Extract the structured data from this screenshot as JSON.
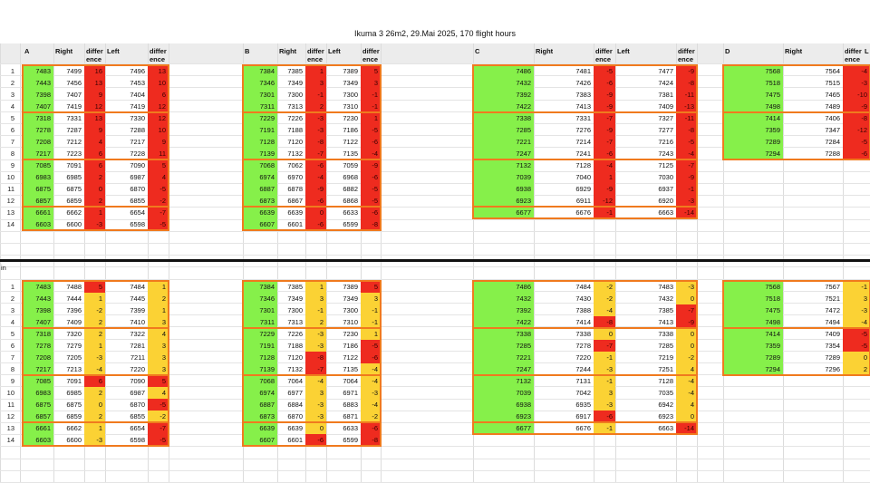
{
  "title": "Ikuma 3 26m2, 29.Mai 2025, 170 flight hours",
  "separator_label": "in",
  "headers": {
    "A": [
      "A",
      "Right",
      "differ ence",
      "Left",
      "differ ence"
    ],
    "B": [
      "B",
      "Right",
      "differ ence",
      "Left",
      "differ ence"
    ],
    "C": [
      "C",
      "Right",
      "differ ence",
      "Left",
      "differ ence"
    ],
    "D": [
      "D",
      "Right",
      "differ ence",
      "L"
    ]
  },
  "colors": {
    "green": "#86f04a",
    "red": "#ee2b1f",
    "yellow": "#fbd234",
    "orange_border": "#f07a1e"
  },
  "table1": {
    "A": [
      [
        "7483",
        "7499",
        "16",
        "7496",
        "13"
      ],
      [
        "7443",
        "7456",
        "13",
        "7453",
        "10"
      ],
      [
        "7398",
        "7407",
        "9",
        "7404",
        "6"
      ],
      [
        "7407",
        "7419",
        "12",
        "7419",
        "12"
      ],
      [
        "7318",
        "7331",
        "13",
        "7330",
        "12"
      ],
      [
        "7278",
        "7287",
        "9",
        "7288",
        "10"
      ],
      [
        "7208",
        "7212",
        "4",
        "7217",
        "9"
      ],
      [
        "7217",
        "7223",
        "6",
        "7228",
        "11"
      ],
      [
        "7085",
        "7091",
        "6",
        "7090",
        "5"
      ],
      [
        "6983",
        "6985",
        "2",
        "6987",
        "4"
      ],
      [
        "6875",
        "6875",
        "0",
        "6870",
        "-5"
      ],
      [
        "6857",
        "6859",
        "2",
        "6855",
        "-2"
      ],
      [
        "6661",
        "6662",
        "1",
        "6654",
        "-7"
      ],
      [
        "6603",
        "6600",
        "-3",
        "6598",
        "-5"
      ]
    ],
    "B": [
      [
        "7384",
        "7385",
        "1",
        "7389",
        "5"
      ],
      [
        "7346",
        "7349",
        "3",
        "7349",
        "3"
      ],
      [
        "7301",
        "7300",
        "-1",
        "7300",
        "-1"
      ],
      [
        "7311",
        "7313",
        "2",
        "7310",
        "-1"
      ],
      [
        "7229",
        "7226",
        "-3",
        "7230",
        "1"
      ],
      [
        "7191",
        "7188",
        "-3",
        "7186",
        "-5"
      ],
      [
        "7128",
        "7120",
        "-8",
        "7122",
        "-6"
      ],
      [
        "7139",
        "7132",
        "-7",
        "7135",
        "-4"
      ],
      [
        "7068",
        "7062",
        "-6",
        "7059",
        "-9"
      ],
      [
        "6974",
        "6970",
        "-4",
        "6968",
        "-6"
      ],
      [
        "6887",
        "6878",
        "-9",
        "6882",
        "-5"
      ],
      [
        "6873",
        "6867",
        "-6",
        "6868",
        "-5"
      ],
      [
        "6639",
        "6639",
        "0",
        "6633",
        "-6"
      ],
      [
        "6607",
        "6601",
        "-6",
        "6599",
        "-8"
      ]
    ],
    "C": [
      [
        "7486",
        "7481",
        "-5",
        "7477",
        "-9"
      ],
      [
        "7432",
        "7426",
        "-6",
        "7424",
        "-8"
      ],
      [
        "7392",
        "7383",
        "-9",
        "7381",
        "-11"
      ],
      [
        "7422",
        "7413",
        "-9",
        "7409",
        "-13"
      ],
      [
        "7338",
        "7331",
        "-7",
        "7327",
        "-11"
      ],
      [
        "7285",
        "7276",
        "-9",
        "7277",
        "-8"
      ],
      [
        "7221",
        "7214",
        "-7",
        "7216",
        "-5"
      ],
      [
        "7247",
        "7241",
        "-6",
        "7243",
        "-4"
      ],
      [
        "7132",
        "7128",
        "-4",
        "7125",
        "-7"
      ],
      [
        "7039",
        "7040",
        "1",
        "7030",
        "-9"
      ],
      [
        "6938",
        "6929",
        "-9",
        "6937",
        "-1"
      ],
      [
        "6923",
        "6911",
        "-12",
        "6920",
        "-3"
      ],
      [
        "6677",
        "6676",
        "-1",
        "6663",
        "-14"
      ],
      null
    ],
    "D": [
      [
        "7568",
        "7564",
        "-4"
      ],
      [
        "7518",
        "7515",
        "-3"
      ],
      [
        "7475",
        "7465",
        "-10"
      ],
      [
        "7498",
        "7489",
        "-9"
      ],
      [
        "7414",
        "7406",
        "-8"
      ],
      [
        "7359",
        "7347",
        "-12"
      ],
      [
        "7289",
        "7284",
        "-5"
      ],
      [
        "7294",
        "7288",
        "-6"
      ],
      null,
      null,
      null,
      null,
      null,
      null
    ]
  },
  "table2": {
    "A": [
      [
        "7483",
        "7488",
        "5",
        "7484",
        "1"
      ],
      [
        "7443",
        "7444",
        "1",
        "7445",
        "2"
      ],
      [
        "7398",
        "7396",
        "-2",
        "7399",
        "1"
      ],
      [
        "7407",
        "7409",
        "2",
        "7410",
        "3"
      ],
      [
        "7318",
        "7320",
        "2",
        "7322",
        "4"
      ],
      [
        "7278",
        "7279",
        "1",
        "7281",
        "3"
      ],
      [
        "7208",
        "7205",
        "-3",
        "7211",
        "3"
      ],
      [
        "7217",
        "7213",
        "-4",
        "7220",
        "3"
      ],
      [
        "7085",
        "7091",
        "6",
        "7090",
        "5"
      ],
      [
        "6983",
        "6985",
        "2",
        "6987",
        "4"
      ],
      [
        "6875",
        "6875",
        "0",
        "6870",
        "-5"
      ],
      [
        "6857",
        "6859",
        "2",
        "6855",
        "-2"
      ],
      [
        "6661",
        "6662",
        "1",
        "6654",
        "-7"
      ],
      [
        "6603",
        "6600",
        "-3",
        "6598",
        "-5"
      ]
    ],
    "B": [
      [
        "7384",
        "7385",
        "1",
        "7389",
        "5"
      ],
      [
        "7346",
        "7349",
        "3",
        "7349",
        "3"
      ],
      [
        "7301",
        "7300",
        "-1",
        "7300",
        "-1"
      ],
      [
        "7311",
        "7313",
        "2",
        "7310",
        "-1"
      ],
      [
        "7229",
        "7226",
        "-3",
        "7230",
        "1"
      ],
      [
        "7191",
        "7188",
        "-3",
        "7186",
        "-5"
      ],
      [
        "7128",
        "7120",
        "-8",
        "7122",
        "-6"
      ],
      [
        "7139",
        "7132",
        "-7",
        "7135",
        "-4"
      ],
      [
        "7068",
        "7064",
        "-4",
        "7064",
        "-4"
      ],
      [
        "6974",
        "6977",
        "3",
        "6971",
        "-3"
      ],
      [
        "6887",
        "6884",
        "-3",
        "6883",
        "-4"
      ],
      [
        "6873",
        "6870",
        "-3",
        "6871",
        "-2"
      ],
      [
        "6639",
        "6639",
        "0",
        "6633",
        "-6"
      ],
      [
        "6607",
        "6601",
        "-6",
        "6599",
        "-8"
      ]
    ],
    "C": [
      [
        "7486",
        "7484",
        "-2",
        "7483",
        "-3"
      ],
      [
        "7432",
        "7430",
        "-2",
        "7432",
        "0"
      ],
      [
        "7392",
        "7388",
        "-4",
        "7385",
        "-7"
      ],
      [
        "7422",
        "7414",
        "-8",
        "7413",
        "-9"
      ],
      [
        "7338",
        "7338",
        "0",
        "7338",
        "0"
      ],
      [
        "7285",
        "7278",
        "-7",
        "7285",
        "0"
      ],
      [
        "7221",
        "7220",
        "-1",
        "7219",
        "-2"
      ],
      [
        "7247",
        "7244",
        "-3",
        "7251",
        "4"
      ],
      [
        "7132",
        "7131",
        "-1",
        "7128",
        "-4"
      ],
      [
        "7039",
        "7042",
        "3",
        "7035",
        "-4"
      ],
      [
        "6938",
        "6935",
        "-3",
        "6942",
        "4"
      ],
      [
        "6923",
        "6917",
        "-6",
        "6923",
        "0"
      ],
      [
        "6677",
        "6676",
        "-1",
        "6663",
        "-14"
      ],
      null
    ],
    "D": [
      [
        "7568",
        "7567",
        "-1"
      ],
      [
        "7518",
        "7521",
        "3"
      ],
      [
        "7475",
        "7472",
        "-3"
      ],
      [
        "7498",
        "7494",
        "-4"
      ],
      [
        "7414",
        "7409",
        "-5"
      ],
      [
        "7359",
        "7354",
        "-5"
      ],
      [
        "7289",
        "7289",
        "0"
      ],
      [
        "7294",
        "7296",
        "2"
      ],
      null,
      null,
      null,
      null,
      null,
      null
    ]
  }
}
